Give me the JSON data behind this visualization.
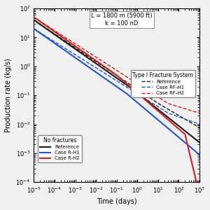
{
  "title_line1": "L = 1800 m (5900 ft)",
  "title_line2": "k = 100 nD",
  "xlabel": "Time (days)",
  "ylabel": "Production rate (kg/s)",
  "xlim": [
    1e-05,
    1000.0
  ],
  "ylim": [
    0.0001,
    100.0
  ],
  "background_color": "#f0f0f0",
  "legend1_title": "Type I Fracture System",
  "legend2_title": "No fractures",
  "colors": {
    "black": "#1a1a1a",
    "blue": "#2255cc",
    "red": "#cc2222"
  }
}
